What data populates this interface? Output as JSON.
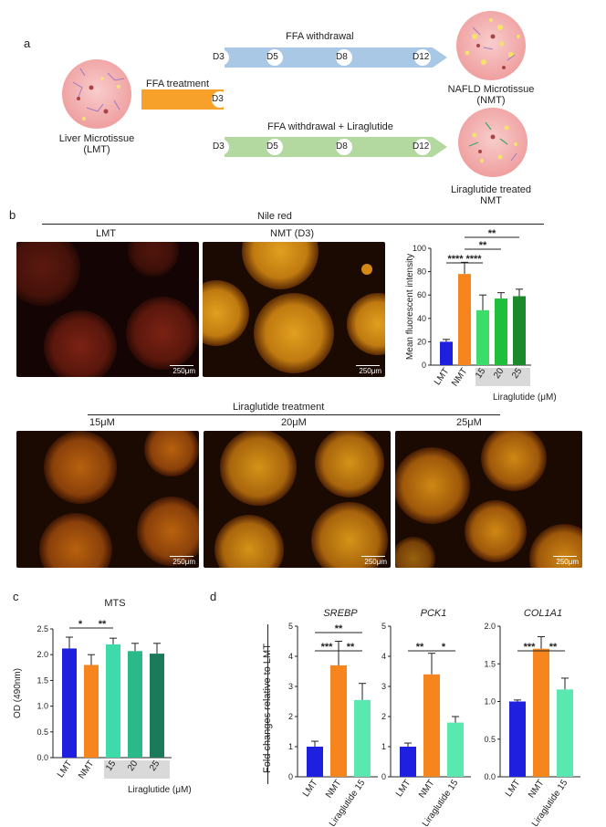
{
  "panel_a": {
    "letter": "a",
    "ffa_withdrawal": "FFA withdrawal",
    "ffa_treatment": "FFA treatment",
    "ffa_withdrawal_lira": "FFA withdrawal + Liraglutide",
    "liver_microtissue_line1": "Liver Microtissue",
    "liver_microtissue_line2": "(LMT)",
    "nafld_line1": "NAFLD Microtissue",
    "nafld_line2": "(NMT)",
    "lira_treated_line1": "Liraglutide treated",
    "lira_treated_line2": "NMT",
    "days_top": [
      "D3",
      "D5",
      "D8",
      "D12"
    ],
    "days_bottom": [
      "D3",
      "D5",
      "D8",
      "D12"
    ],
    "treatment_day": "D3",
    "colors": {
      "withdrawal_arrow": "#a9c8e6",
      "lira_arrow": "#b4d9a0",
      "treatment_bar": "#f7a12a",
      "tissue": "#f4b9b9"
    }
  },
  "panel_b": {
    "letter": "b",
    "nile_red": "Nile red",
    "lmt_label": "LMT",
    "nmt_label": "NMT  (D3)",
    "lira_treatment": "Liraglutide treatment",
    "dose_labels": [
      "15μM",
      "20μM",
      "25μM"
    ],
    "scale_bar": "250μm"
  },
  "panel_c": {
    "letter": "c"
  },
  "panel_d": {
    "letter": "d",
    "ylabel": "Fold changes relative to LMT"
  },
  "chart_data": [
    {
      "id": "b-bar",
      "type": "bar",
      "ylabel": "Mean fluorescent intensity",
      "ylim": [
        0,
        100
      ],
      "yticks": [
        0,
        20,
        40,
        60,
        80,
        100
      ],
      "categories": [
        "LMT",
        "NMT",
        "15",
        "20",
        "25"
      ],
      "values": [
        20,
        78,
        47,
        57,
        59
      ],
      "errors": [
        2,
        10,
        13,
        5,
        6
      ],
      "colors": [
        "#1f1fe0",
        "#f7851e",
        "#3ddb6a",
        "#1fbf3a",
        "#1a8a2a"
      ],
      "group_label": "Liraglutide (μM)",
      "significance": [
        "****",
        "****",
        "**",
        "**"
      ]
    },
    {
      "id": "c-bar",
      "type": "bar",
      "title": "MTS",
      "ylabel": "OD (490nm)",
      "ylim": [
        0,
        2.5
      ],
      "yticks": [
        "0.0",
        "0.5",
        "1.0",
        "1.5",
        "2.0",
        "2.5"
      ],
      "categories": [
        "LMT",
        "NMT",
        "15",
        "20",
        "25"
      ],
      "values": [
        2.12,
        1.8,
        2.2,
        2.07,
        2.02
      ],
      "errors": [
        0.22,
        0.2,
        0.12,
        0.15,
        0.2
      ],
      "colors": [
        "#1f1fe0",
        "#f7851e",
        "#3ddbaa",
        "#2aba8a",
        "#1a7a5a"
      ],
      "group_label": "Liraglutide (μM)",
      "significance": [
        "*",
        "**"
      ]
    },
    {
      "id": "d-srebp",
      "type": "bar",
      "title": "SREBP",
      "ylim": [
        0,
        5
      ],
      "yticks": [
        "0",
        "1",
        "2",
        "3",
        "4",
        "5"
      ],
      "categories": [
        "LMT",
        "NMT",
        "Liraglutide 15"
      ],
      "values": [
        1.0,
        3.7,
        2.55
      ],
      "errors": [
        0.18,
        0.8,
        0.55
      ],
      "colors": [
        "#1f1fe0",
        "#f7851e",
        "#5ae8b0"
      ],
      "significance": [
        "***",
        "**",
        "**"
      ]
    },
    {
      "id": "d-pck1",
      "type": "bar",
      "title": "PCK1",
      "ylim": [
        0,
        5
      ],
      "yticks": [
        "0",
        "1",
        "2",
        "3",
        "4",
        "5"
      ],
      "categories": [
        "LMT",
        "NMT",
        "Liraglutide 15"
      ],
      "values": [
        1.0,
        3.4,
        1.8
      ],
      "errors": [
        0.12,
        0.7,
        0.2
      ],
      "colors": [
        "#1f1fe0",
        "#f7851e",
        "#5ae8b0"
      ],
      "significance": [
        "**",
        "*"
      ]
    },
    {
      "id": "d-col1a1",
      "type": "bar",
      "title": "COL1A1",
      "ylim": [
        0,
        2.0
      ],
      "yticks": [
        "0.0",
        "0.5",
        "1.0",
        "1.5",
        "2.0"
      ],
      "categories": [
        "LMT",
        "NMT",
        "Liraglutide 15"
      ],
      "values": [
        1.0,
        1.7,
        1.16
      ],
      "errors": [
        0.02,
        0.16,
        0.15
      ],
      "colors": [
        "#1f1fe0",
        "#f7851e",
        "#5ae8b0"
      ],
      "significance": [
        "***",
        "**"
      ]
    }
  ]
}
